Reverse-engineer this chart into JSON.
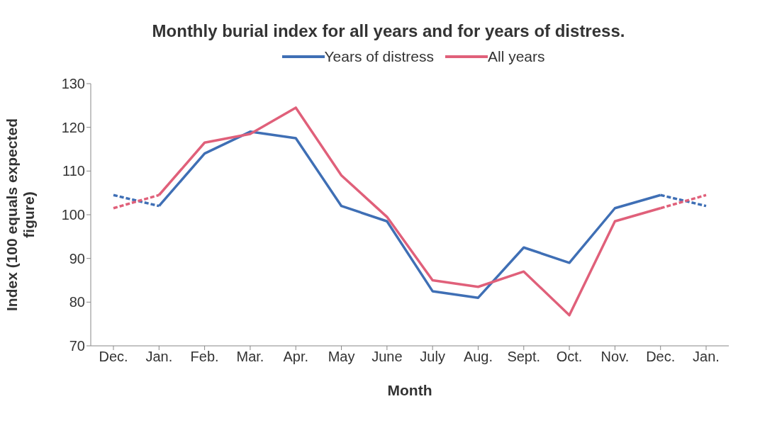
{
  "chart_data": {
    "type": "line",
    "title": "Monthly burial index for all years and for years of distress.",
    "xlabel": "Month",
    "ylabel": "Index (100 equals expected figure)",
    "categories": [
      "Dec.",
      "Jan.",
      "Feb.",
      "Mar.",
      "Apr.",
      "May",
      "June",
      "July",
      "Aug.",
      "Sept.",
      "Oct.",
      "Nov.",
      "Dec.",
      "Jan."
    ],
    "series": [
      {
        "name": "Years of distress",
        "color": "#3f6fb5",
        "values": [
          null,
          102,
          114,
          119,
          117.5,
          102,
          98.5,
          82.5,
          81,
          92.5,
          89,
          101.5,
          104.5,
          null
        ]
      },
      {
        "name": "All years",
        "color": "#e0607a",
        "values": [
          null,
          104.5,
          116.5,
          118.5,
          124.5,
          109,
          99.5,
          85,
          83.5,
          87,
          77,
          98.5,
          101.5,
          null
        ]
      },
      {
        "color": "#3f6fb5",
        "line_style": "dashed",
        "values": [
          104.5,
          102,
          null,
          null,
          null,
          null,
          null,
          null,
          null,
          null,
          null,
          null,
          104.5,
          102
        ]
      },
      {
        "color": "#e0607a",
        "line_style": "dashed",
        "values": [
          101.5,
          104.5,
          null,
          null,
          null,
          null,
          null,
          null,
          null,
          null,
          null,
          null,
          101.5,
          104.5
        ]
      }
    ],
    "ylim": [
      70,
      130
    ],
    "yticks": [
      70,
      80,
      90,
      100,
      110,
      120,
      130
    ],
    "grid": false,
    "legend": "top",
    "marker": "none",
    "line_style": "solid"
  }
}
